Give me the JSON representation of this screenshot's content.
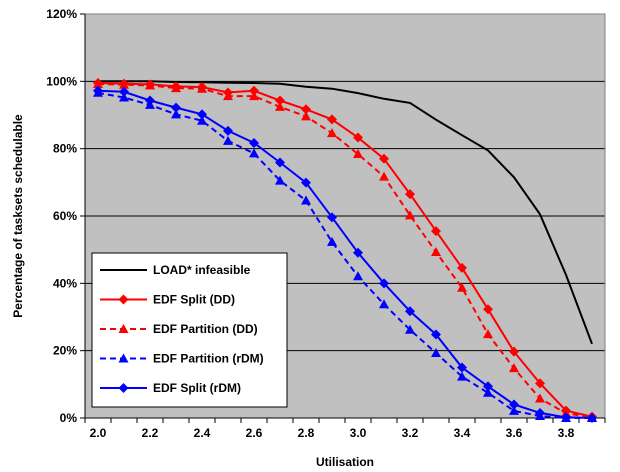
{
  "chart_data": {
    "type": "line",
    "title": "",
    "xlabel": "Utilisation",
    "ylabel": "Percentage of tasksets schedulable",
    "xlim": [
      1.95,
      3.95
    ],
    "ylim": [
      0,
      120
    ],
    "x_ticks": [
      "2.0",
      "2.2",
      "2.4",
      "2.6",
      "2.8",
      "3.0",
      "3.2",
      "3.4",
      "3.6",
      "3.8"
    ],
    "y_ticks": [
      "0%",
      "20%",
      "40%",
      "60%",
      "80%",
      "100%",
      "120%"
    ],
    "grid": "horizontal",
    "legend_position": "bottom-left",
    "background": "#c0c0c0",
    "series": [
      {
        "name": "LOAD* infeasible",
        "color": "#000000",
        "dash": "solid",
        "marker": "none",
        "x": [
          2.0,
          2.1,
          2.2,
          2.3,
          2.4,
          2.5,
          2.6,
          2.7,
          2.8,
          2.9,
          3.0,
          3.1,
          3.2,
          3.3,
          3.4,
          3.5,
          3.6,
          3.7,
          3.8,
          3.9
        ],
        "y": [
          100,
          100,
          100,
          99.8,
          99.7,
          99.6,
          99.5,
          99.3,
          98.4,
          97.8,
          96.5,
          94.8,
          93.6,
          88.6,
          84,
          79.5,
          71.5,
          60.5,
          42.5,
          22
        ]
      },
      {
        "name": "EDF Split (DD)",
        "color": "#ff0000",
        "dash": "solid",
        "marker": "diamond",
        "x": [
          2.0,
          2.1,
          2.2,
          2.3,
          2.4,
          2.5,
          2.6,
          2.7,
          2.8,
          2.9,
          3.0,
          3.1,
          3.2,
          3.3,
          3.4,
          3.5,
          3.6,
          3.7,
          3.8,
          3.9
        ],
        "y": [
          99.5,
          99.3,
          99.1,
          98.5,
          98.3,
          96.7,
          97.2,
          94.3,
          91.7,
          88.7,
          83.3,
          77,
          66.5,
          55.5,
          44.6,
          32.3,
          19.7,
          10.3,
          2.2,
          0.4
        ]
      },
      {
        "name": "EDF Partition (DD)",
        "color": "#ff0000",
        "dash": "dashed",
        "marker": "triangle",
        "x": [
          2.0,
          2.1,
          2.2,
          2.3,
          2.4,
          2.5,
          2.6,
          2.7,
          2.8,
          2.9,
          3.0,
          3.1,
          3.2,
          3.3,
          3.4,
          3.5,
          3.6,
          3.7,
          3.8,
          3.9
        ],
        "y": [
          99.2,
          99,
          98.8,
          98,
          97.8,
          95.6,
          95.6,
          92.4,
          89.6,
          84.6,
          78.4,
          71.7,
          60.2,
          49.3,
          38.7,
          24.9,
          14.8,
          5.8,
          1.4,
          0.2
        ]
      },
      {
        "name": "EDF Partition (rDM)",
        "color": "#0000ff",
        "dash": "dashed",
        "marker": "triangle",
        "x": [
          2.0,
          2.1,
          2.2,
          2.3,
          2.4,
          2.5,
          2.6,
          2.7,
          2.8,
          2.9,
          3.0,
          3.1,
          3.2,
          3.3,
          3.4,
          3.5,
          3.6,
          3.7,
          3.8,
          3.9
        ],
        "y": [
          96.6,
          95.2,
          93,
          90.2,
          88.3,
          82.3,
          78.6,
          70.5,
          64.6,
          52.3,
          42.1,
          33.8,
          26.2,
          19.3,
          12.3,
          7.5,
          2.1,
          0.6,
          0,
          0
        ]
      },
      {
        "name": "EDF Split (rDM)",
        "color": "#0000ff",
        "dash": "solid",
        "marker": "diamond",
        "x": [
          2.0,
          2.1,
          2.2,
          2.3,
          2.4,
          2.5,
          2.6,
          2.7,
          2.8,
          2.9,
          3.0,
          3.1,
          3.2,
          3.3,
          3.4,
          3.5,
          3.6,
          3.7,
          3.8,
          3.9
        ],
        "y": [
          97.2,
          96.9,
          94.3,
          92.2,
          90.2,
          85.3,
          81.7,
          75.9,
          69.9,
          59.6,
          49.1,
          40,
          31.7,
          24.8,
          15,
          9.4,
          4,
          1.5,
          0.2,
          0
        ]
      }
    ]
  }
}
